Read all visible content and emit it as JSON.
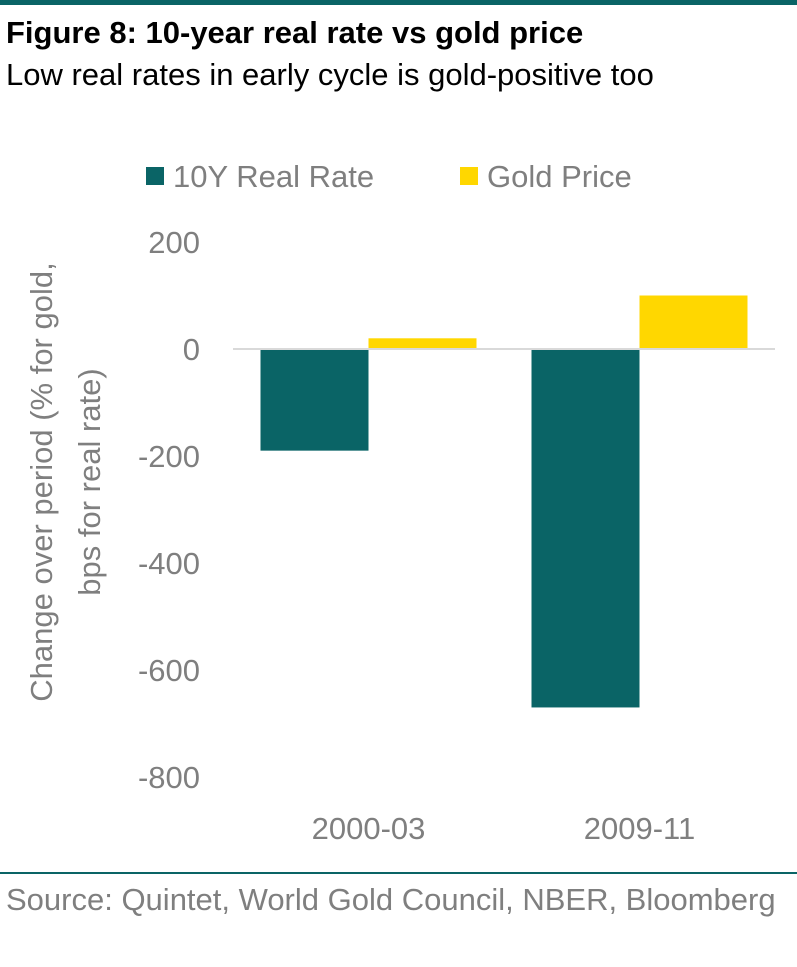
{
  "header": {
    "title": "Figure 8: 10-year real rate vs gold price",
    "subtitle": "Low real rates in early cycle is gold-positive too"
  },
  "footer": {
    "source": "Source: Quintet, World Gold Council, NBER, Bloomberg"
  },
  "colors": {
    "real_rate": "#0a6466",
    "gold": "#ffd700",
    "axis_text": "#7f7f7f",
    "zero_line": "#d9d9d9",
    "rule": "#0a6466"
  },
  "chart_data": {
    "type": "bar",
    "title": "",
    "xlabel": "",
    "ylabel": "Change over period (% for gold, bps for real rate)",
    "categories": [
      "2000-03",
      "2009-11"
    ],
    "series": [
      {
        "name": "10Y Real Rate",
        "color": "#0a6466",
        "values": [
          -190,
          -670
        ]
      },
      {
        "name": "Gold Price",
        "color": "#ffd700",
        "values": [
          20,
          100
        ]
      }
    ],
    "ylim": [
      -800,
      200
    ],
    "yticks": [
      200,
      0,
      -200,
      -400,
      -600,
      -800
    ],
    "ytick_labels": [
      "200",
      "0",
      "-200",
      "-400",
      "-600",
      "-800"
    ],
    "grid": false,
    "legend_position": "top"
  }
}
